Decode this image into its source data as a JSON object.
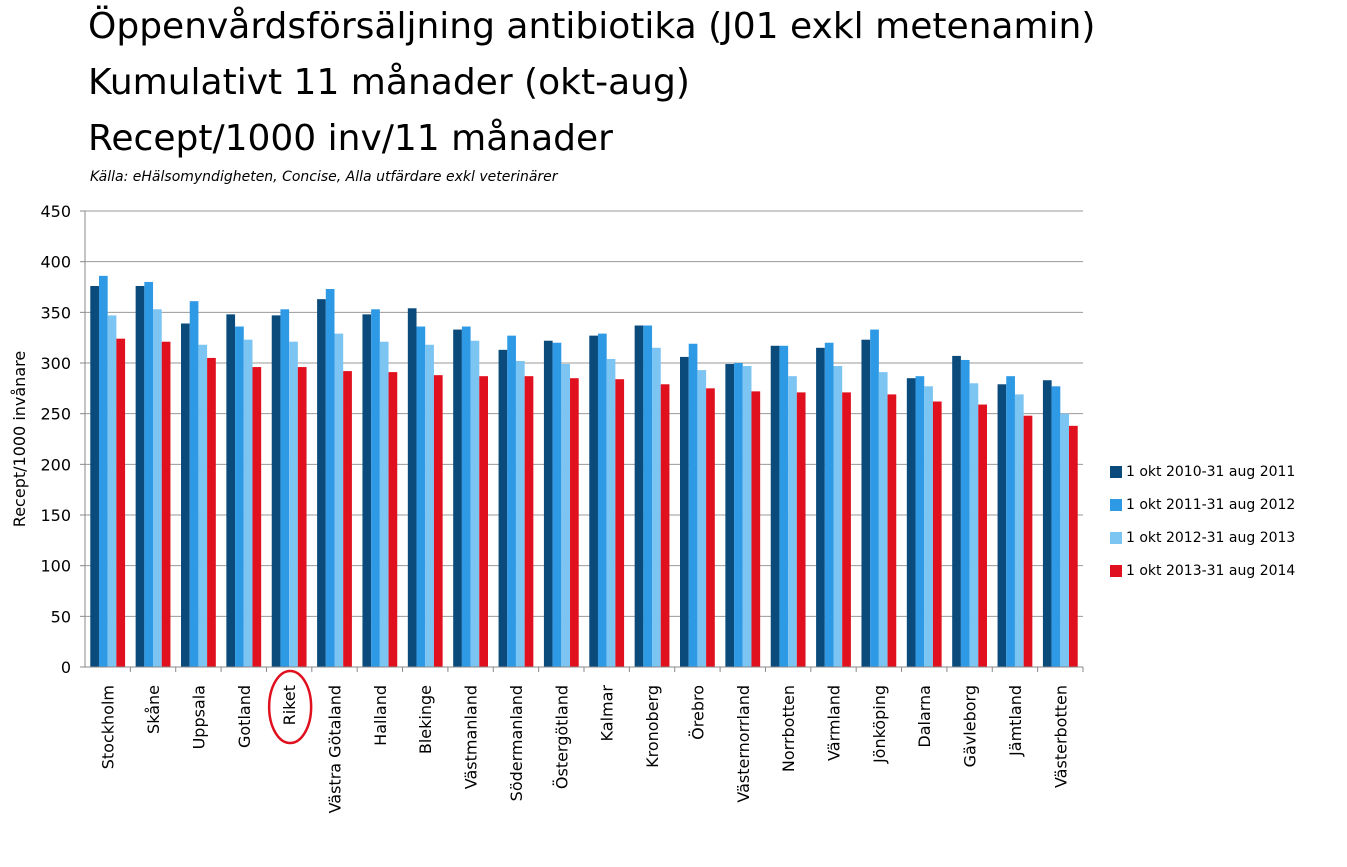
{
  "chart_data": {
    "type": "bar",
    "title_lines": [
      "Öppenvårdsförsäljning antibiotika (J01 exkl metenamin)",
      "Kumulativt 11 månader (okt-aug)",
      "Recept/1000 inv/11 månader"
    ],
    "source": "Källa: eHälsomyndigheten, Concise, Alla utfärdare exkl veterinärer",
    "ylabel": "Recept/1000 invånare",
    "xlabel": "",
    "ylim": [
      0,
      450
    ],
    "yticks": [
      "0",
      "50",
      "100",
      "150",
      "200",
      "250",
      "300",
      "350",
      "400",
      "450"
    ],
    "grid": true,
    "legend_position": "right",
    "highlighted_category": "Riket",
    "categories": [
      "Stockholm",
      "Skåne",
      "Uppsala",
      "Gotland",
      "Riket",
      "Västra Götaland",
      "Halland",
      "Blekinge",
      "Västmanland",
      "Södermanland",
      "Östergötland",
      "Kalmar",
      "Kronoberg",
      "Örebro",
      "Västernorrland",
      "Norrbotten",
      "Värmland",
      "Jönköping",
      "Dalarna",
      "Gävleborg",
      "Jämtland",
      "Västerbotten"
    ],
    "series": [
      {
        "name": "1 okt 2010-31 aug 2011",
        "color": "#0a4b7c",
        "values": [
          376,
          376,
          339,
          348,
          347,
          363,
          348,
          354,
          333,
          313,
          322,
          327,
          337,
          306,
          299,
          317,
          315,
          323,
          285,
          307,
          279,
          283
        ]
      },
      {
        "name": "1 okt 2011-31 aug 2012",
        "color": "#2e9ae6",
        "values": [
          386,
          380,
          361,
          336,
          353,
          373,
          353,
          336,
          336,
          327,
          320,
          329,
          337,
          319,
          300,
          317,
          320,
          333,
          287,
          303,
          287,
          277
        ]
      },
      {
        "name": "1 okt 2012-31 aug 2013",
        "color": "#7cc4f2",
        "values": [
          347,
          353,
          318,
          323,
          321,
          329,
          321,
          318,
          322,
          302,
          299,
          304,
          315,
          293,
          297,
          287,
          297,
          291,
          277,
          280,
          269,
          250
        ]
      },
      {
        "name": "1 okt 2013-31 aug 2014",
        "color": "#e0101e",
        "values": [
          324,
          321,
          305,
          296,
          296,
          292,
          291,
          288,
          287,
          287,
          285,
          284,
          279,
          275,
          272,
          271,
          271,
          269,
          262,
          259,
          248,
          238
        ]
      }
    ]
  }
}
